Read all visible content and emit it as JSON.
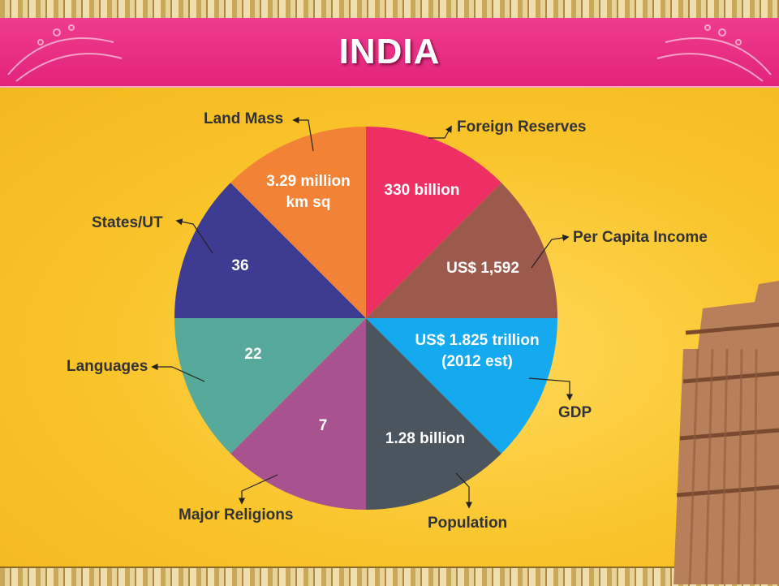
{
  "title": "INDIA",
  "chart_data": {
    "type": "pie",
    "slices": [
      {
        "label": "Foreign Reserves",
        "value_text": "330 billion",
        "color": "#ee2f63"
      },
      {
        "label": "Per Capita Income",
        "value_text": "US$ 1,592",
        "color": "#9b5a4b"
      },
      {
        "label": "GDP",
        "value_text": "US$ 1.825 trillion\n(2012 est)",
        "color": "#15aaf0"
      },
      {
        "label": "Population",
        "value_text": "1.28 billion",
        "color": "#4a555d"
      },
      {
        "label": "Major Religions",
        "value_text": "7",
        "color": "#a8528f"
      },
      {
        "label": "Languages",
        "value_text": "22",
        "color": "#57a99a"
      },
      {
        "label": "States/UT",
        "value_text": "36",
        "color": "#3d3c92"
      },
      {
        "label": "Land Mass",
        "value_text": "3.29 million\nkm sq",
        "color": "#f28236"
      }
    ]
  },
  "colors": {
    "banner": "#e2237b",
    "background": "#f9c42a",
    "label_text": "#333333",
    "value_text": "#ffffff"
  }
}
